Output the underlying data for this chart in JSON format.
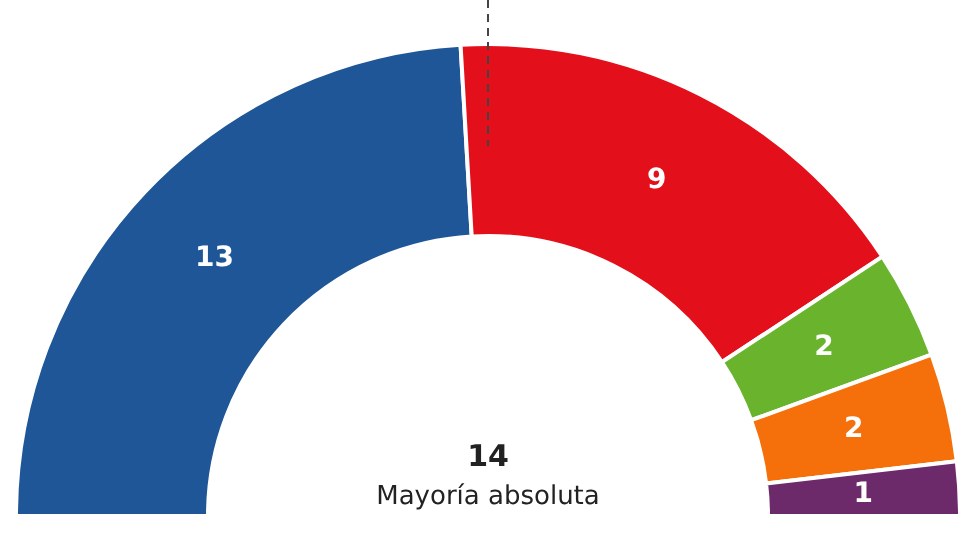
{
  "chart_data": {
    "type": "donut",
    "categories": [
      null,
      null,
      null,
      null,
      null
    ],
    "values": [
      13,
      9,
      2,
      2,
      1
    ],
    "colors": [
      "#1f5697",
      "#e3101b",
      "#6ab42d",
      "#f5700a",
      "#6d2a6b"
    ],
    "data_labels": true,
    "annotations": [
      "14",
      "Mayoría absoluta"
    ],
    "ref_lines": [
      {
        "axis": "x",
        "line_style": "dashed",
        "color": "#444444"
      }
    ]
  }
}
